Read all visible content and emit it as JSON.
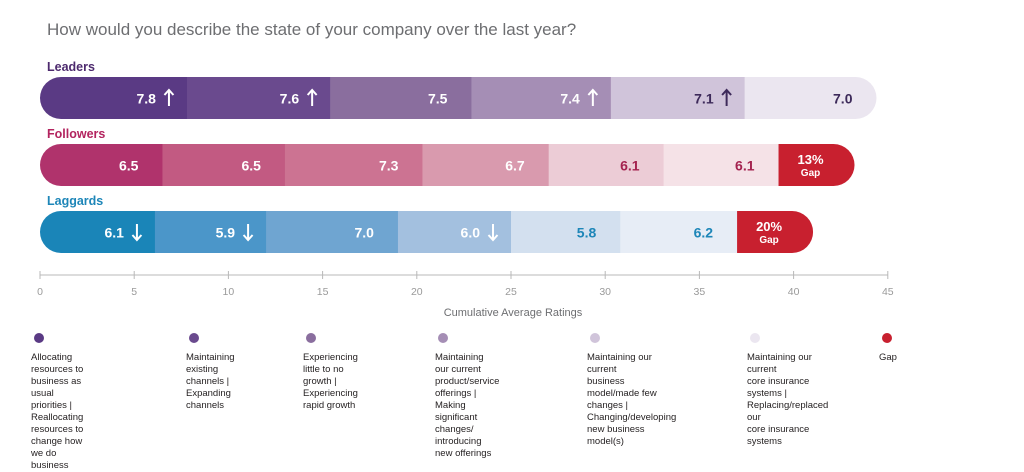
{
  "title": "How would you describe the state of your company over the last year?",
  "chart_data": {
    "type": "bar",
    "orientation": "horizontal-stacked",
    "xlabel": "Cumulative Average Ratings",
    "xlim": [
      0,
      45
    ],
    "x_ticks": [
      "0",
      "5",
      "10",
      "15",
      "20",
      "25",
      "30",
      "35",
      "40",
      "45"
    ],
    "categories": [
      "Allocating resources to business as usual priorities | Reallocating resources to change how we do business",
      "Maintaining existing channels | Expanding channels",
      "Experiencing little to no growth | Experiencing rapid growth",
      "Maintaining our current product/service offerings | Making significant changes/ introducing new offerings",
      "Maintaining our current business model/made few changes | Changing/developing new business model(s)",
      "Maintaining our current core insurance systems | Replacing/replaced our core insurance systems",
      "Gap"
    ],
    "rows": [
      {
        "name": "Leaders",
        "name_color": "#4d2a6e",
        "values": [
          7.8,
          7.6,
          7.5,
          7.4,
          7.1,
          7.0
        ],
        "labels": [
          "7.8",
          "7.6",
          "7.5",
          "7.4",
          "7.1",
          "7.0"
        ],
        "arrows": [
          "up",
          "up",
          "",
          "up",
          "up",
          ""
        ],
        "colors": [
          "#5a3a84",
          "#6a4a8e",
          "#8a6e9e",
          "#a58eb5",
          "#d0c4da",
          "#ebe6f0"
        ],
        "label_colors": [
          "#ffffff",
          "#ffffff",
          "#ffffff",
          "#ffffff",
          "#3d2a5a",
          "#3d2a5a"
        ],
        "gap": null
      },
      {
        "name": "Followers",
        "name_color": "#b3245f",
        "values": [
          6.5,
          6.5,
          7.3,
          6.7,
          6.1,
          6.1
        ],
        "labels": [
          "6.5",
          "6.5",
          "7.3",
          "6.7",
          "6.1",
          "6.1"
        ],
        "arrows": [
          "",
          "",
          "",
          "",
          "",
          ""
        ],
        "colors": [
          "#b0336c",
          "#c25a82",
          "#cc7392",
          "#d99aae",
          "#ecccd6",
          "#f5e2e7"
        ],
        "label_colors": [
          "#ffffff",
          "#ffffff",
          "#ffffff",
          "#ffffff",
          "#a4224f",
          "#a4224f"
        ],
        "gap": {
          "value_label": "13%",
          "label": "Gap"
        }
      },
      {
        "name": "Laggards",
        "name_color": "#1d86b8",
        "values": [
          6.1,
          5.9,
          7.0,
          6.0,
          5.8,
          6.2
        ],
        "labels": [
          "6.1",
          "5.9",
          "7.0",
          "6.0",
          "5.8",
          "6.2"
        ],
        "arrows": [
          "down",
          "down",
          "",
          "down",
          "",
          ""
        ],
        "colors": [
          "#1a85b8",
          "#4b96c9",
          "#6fa5d1",
          "#a3c0df",
          "#d3e0ef",
          "#e7edf6"
        ],
        "label_colors": [
          "#ffffff",
          "#ffffff",
          "#ffffff",
          "#ffffff",
          "#1d86b8",
          "#1d86b8"
        ],
        "gap": {
          "value_label": "20%",
          "label": "Gap"
        }
      }
    ],
    "gap_color": "#c8202f",
    "legend_colors": [
      "#5a3a84",
      "#6a4a8e",
      "#8a6e9e",
      "#a58eb5",
      "#d0c4da",
      "#ebe6f0",
      "#c8202f"
    ],
    "legend_placement": "bottom"
  },
  "legend": [
    {
      "label": "Allocating resources to\nbusiness as usual priorities |\nReallocating resources to\nchange how we do business"
    },
    {
      "label": "Maintaining existing\nchannels | Expanding\nchannels"
    },
    {
      "label": "Experiencing little to no\ngrowth | Experiencing\nrapid growth"
    },
    {
      "label": "Maintaining our current\nproduct/service offerings |\nMaking significant changes/\nintroducing new offerings"
    },
    {
      "label": "Maintaining our current\nbusiness model/made few\nchanges | Changing/developing\nnew business model(s)"
    },
    {
      "label": "Maintaining our current\ncore insurance systems |\nReplacing/replaced our\ncore insurance systems"
    },
    {
      "label": "Gap"
    }
  ]
}
